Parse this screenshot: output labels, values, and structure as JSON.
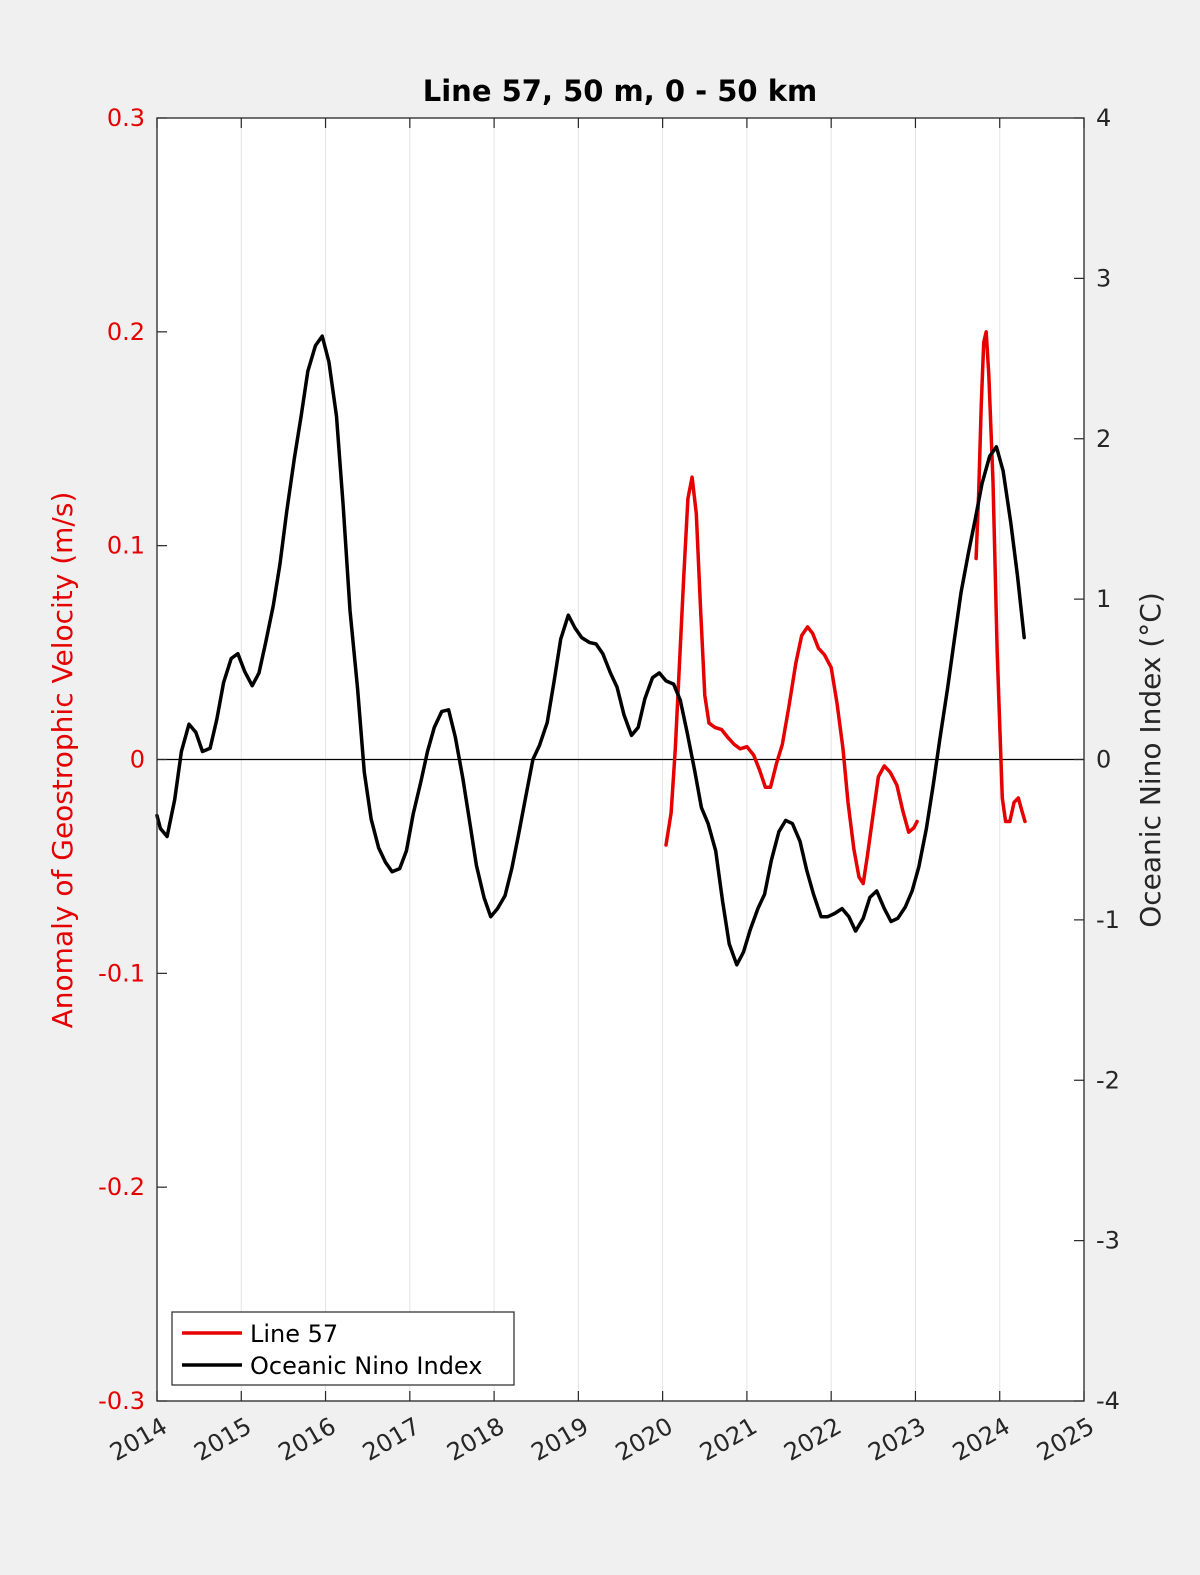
{
  "chart_data": {
    "type": "line",
    "title": "Line 57, 50 m, 0 - 50 km",
    "ylabel_left": "Anomaly of Geostrophic Velocity (m/s)",
    "ylabel_right": "Oceanic Nino Index (°C)",
    "xlim": [
      2014,
      2025
    ],
    "ylim_left": [
      -0.3,
      0.3
    ],
    "ylim_right": [
      -4,
      4
    ],
    "x_ticks": [
      "2014",
      "2015",
      "2016",
      "2017",
      "2018",
      "2019",
      "2020",
      "2021",
      "2022",
      "2023",
      "2024",
      "2025"
    ],
    "y_left_ticks": [
      "-0.3",
      "-0.2",
      "-0.1",
      "0",
      "0.1",
      "0.2",
      "0.3"
    ],
    "y_right_ticks": [
      "-4",
      "-3",
      "-2",
      "-1",
      "0",
      "1",
      "2",
      "3",
      "4"
    ],
    "grid": "vertical",
    "legend_position": "bottom-left",
    "colors": {
      "line57": "#e60000",
      "oni": "#000000",
      "left_axis": "#e60000"
    },
    "series": [
      {
        "name": "Line 57",
        "axis": "left",
        "color": "#e60000",
        "points": [
          [
            2020.04,
            -0.04
          ],
          [
            2020.1,
            -0.025
          ],
          [
            2020.15,
            0.005
          ],
          [
            2020.2,
            0.045
          ],
          [
            2020.25,
            0.085
          ],
          [
            2020.3,
            0.122
          ],
          [
            2020.35,
            0.132
          ],
          [
            2020.4,
            0.115
          ],
          [
            2020.45,
            0.07
          ],
          [
            2020.5,
            0.03
          ],
          [
            2020.55,
            0.017
          ],
          [
            2020.62,
            0.015
          ],
          [
            2020.7,
            0.014
          ],
          [
            2020.78,
            0.01
          ],
          [
            2020.85,
            0.007
          ],
          [
            2020.92,
            0.005
          ],
          [
            2021.0,
            0.006
          ],
          [
            2021.08,
            0.002
          ],
          [
            2021.15,
            -0.005
          ],
          [
            2021.22,
            -0.013
          ],
          [
            2021.28,
            -0.013
          ],
          [
            2021.35,
            -0.002
          ],
          [
            2021.42,
            0.007
          ],
          [
            2021.5,
            0.025
          ],
          [
            2021.58,
            0.045
          ],
          [
            2021.65,
            0.058
          ],
          [
            2021.72,
            0.062
          ],
          [
            2021.78,
            0.059
          ],
          [
            2021.85,
            0.052
          ],
          [
            2021.92,
            0.049
          ],
          [
            2022.0,
            0.043
          ],
          [
            2022.07,
            0.026
          ],
          [
            2022.14,
            0.005
          ],
          [
            2022.2,
            -0.02
          ],
          [
            2022.27,
            -0.042
          ],
          [
            2022.33,
            -0.055
          ],
          [
            2022.38,
            -0.058
          ],
          [
            2022.43,
            -0.045
          ],
          [
            2022.5,
            -0.025
          ],
          [
            2022.56,
            -0.008
          ],
          [
            2022.63,
            -0.003
          ],
          [
            2022.7,
            -0.006
          ],
          [
            2022.78,
            -0.012
          ],
          [
            2022.85,
            -0.024
          ],
          [
            2022.92,
            -0.034
          ],
          [
            2022.98,
            -0.032
          ],
          [
            2023.02,
            -0.029
          ]
        ]
      },
      {
        "name": "Line 57",
        "axis": "left",
        "color": "#e60000",
        "points": [
          [
            2023.72,
            0.094
          ],
          [
            2023.75,
            0.125
          ],
          [
            2023.78,
            0.165
          ],
          [
            2023.81,
            0.195
          ],
          [
            2023.84,
            0.2
          ],
          [
            2023.87,
            0.18
          ],
          [
            2023.92,
            0.13
          ],
          [
            2023.97,
            0.05
          ],
          [
            2024.03,
            -0.018
          ],
          [
            2024.07,
            -0.029
          ],
          [
            2024.12,
            -0.029
          ],
          [
            2024.17,
            -0.02
          ],
          [
            2024.22,
            -0.018
          ],
          [
            2024.27,
            -0.025
          ],
          [
            2024.3,
            -0.029
          ]
        ]
      },
      {
        "name": "Oceanic Nino Index",
        "axis": "right",
        "color": "#000000",
        "points": [
          [
            2014.0,
            -0.35
          ],
          [
            2014.04,
            -0.43
          ],
          [
            2014.12,
            -0.48
          ],
          [
            2014.21,
            -0.25
          ],
          [
            2014.29,
            0.05
          ],
          [
            2014.38,
            0.22
          ],
          [
            2014.46,
            0.17
          ],
          [
            2014.54,
            0.05
          ],
          [
            2014.63,
            0.07
          ],
          [
            2014.71,
            0.25
          ],
          [
            2014.79,
            0.48
          ],
          [
            2014.88,
            0.63
          ],
          [
            2014.96,
            0.66
          ],
          [
            2015.04,
            0.55
          ],
          [
            2015.13,
            0.46
          ],
          [
            2015.21,
            0.54
          ],
          [
            2015.29,
            0.73
          ],
          [
            2015.38,
            0.96
          ],
          [
            2015.46,
            1.22
          ],
          [
            2015.54,
            1.55
          ],
          [
            2015.63,
            1.88
          ],
          [
            2015.71,
            2.14
          ],
          [
            2015.79,
            2.42
          ],
          [
            2015.88,
            2.58
          ],
          [
            2015.96,
            2.64
          ],
          [
            2016.04,
            2.48
          ],
          [
            2016.13,
            2.14
          ],
          [
            2016.21,
            1.58
          ],
          [
            2016.29,
            0.93
          ],
          [
            2016.38,
            0.44
          ],
          [
            2016.46,
            -0.08
          ],
          [
            2016.54,
            -0.37
          ],
          [
            2016.63,
            -0.55
          ],
          [
            2016.71,
            -0.64
          ],
          [
            2016.79,
            -0.7
          ],
          [
            2016.88,
            -0.68
          ],
          [
            2016.96,
            -0.57
          ],
          [
            2017.04,
            -0.34
          ],
          [
            2017.13,
            -0.14
          ],
          [
            2017.21,
            0.05
          ],
          [
            2017.29,
            0.2
          ],
          [
            2017.38,
            0.3
          ],
          [
            2017.46,
            0.31
          ],
          [
            2017.54,
            0.14
          ],
          [
            2017.63,
            -0.12
          ],
          [
            2017.71,
            -0.39
          ],
          [
            2017.79,
            -0.66
          ],
          [
            2017.88,
            -0.86
          ],
          [
            2017.96,
            -0.98
          ],
          [
            2018.04,
            -0.93
          ],
          [
            2018.13,
            -0.85
          ],
          [
            2018.21,
            -0.68
          ],
          [
            2018.29,
            -0.47
          ],
          [
            2018.38,
            -0.22
          ],
          [
            2018.46,
            0.0
          ],
          [
            2018.54,
            0.09
          ],
          [
            2018.63,
            0.23
          ],
          [
            2018.71,
            0.48
          ],
          [
            2018.79,
            0.75
          ],
          [
            2018.88,
            0.9
          ],
          [
            2018.96,
            0.82
          ],
          [
            2019.04,
            0.76
          ],
          [
            2019.13,
            0.73
          ],
          [
            2019.21,
            0.72
          ],
          [
            2019.29,
            0.66
          ],
          [
            2019.38,
            0.54
          ],
          [
            2019.46,
            0.45
          ],
          [
            2019.54,
            0.28
          ],
          [
            2019.63,
            0.15
          ],
          [
            2019.71,
            0.2
          ],
          [
            2019.79,
            0.38
          ],
          [
            2019.88,
            0.51
          ],
          [
            2019.96,
            0.54
          ],
          [
            2020.04,
            0.49
          ],
          [
            2020.13,
            0.47
          ],
          [
            2020.21,
            0.37
          ],
          [
            2020.29,
            0.17
          ],
          [
            2020.38,
            -0.07
          ],
          [
            2020.46,
            -0.3
          ],
          [
            2020.54,
            -0.4
          ],
          [
            2020.63,
            -0.57
          ],
          [
            2020.71,
            -0.88
          ],
          [
            2020.79,
            -1.15
          ],
          [
            2020.88,
            -1.28
          ],
          [
            2020.96,
            -1.2
          ],
          [
            2021.04,
            -1.06
          ],
          [
            2021.13,
            -0.93
          ],
          [
            2021.21,
            -0.84
          ],
          [
            2021.29,
            -0.63
          ],
          [
            2021.38,
            -0.45
          ],
          [
            2021.46,
            -0.38
          ],
          [
            2021.54,
            -0.4
          ],
          [
            2021.63,
            -0.51
          ],
          [
            2021.71,
            -0.69
          ],
          [
            2021.79,
            -0.84
          ],
          [
            2021.88,
            -0.98
          ],
          [
            2021.96,
            -0.98
          ],
          [
            2022.04,
            -0.96
          ],
          [
            2022.13,
            -0.93
          ],
          [
            2022.21,
            -0.98
          ],
          [
            2022.29,
            -1.07
          ],
          [
            2022.38,
            -0.99
          ],
          [
            2022.46,
            -0.86
          ],
          [
            2022.54,
            -0.82
          ],
          [
            2022.63,
            -0.93
          ],
          [
            2022.71,
            -1.01
          ],
          [
            2022.79,
            -0.99
          ],
          [
            2022.88,
            -0.92
          ],
          [
            2022.96,
            -0.82
          ],
          [
            2023.04,
            -0.67
          ],
          [
            2023.13,
            -0.43
          ],
          [
            2023.21,
            -0.16
          ],
          [
            2023.29,
            0.13
          ],
          [
            2023.38,
            0.44
          ],
          [
            2023.46,
            0.74
          ],
          [
            2023.54,
            1.04
          ],
          [
            2023.63,
            1.29
          ],
          [
            2023.71,
            1.5
          ],
          [
            2023.79,
            1.72
          ],
          [
            2023.88,
            1.89
          ],
          [
            2023.96,
            1.95
          ],
          [
            2024.04,
            1.8
          ],
          [
            2024.13,
            1.48
          ],
          [
            2024.21,
            1.15
          ],
          [
            2024.29,
            0.76
          ]
        ]
      }
    ]
  },
  "legend": {
    "items": [
      {
        "label": "Line 57",
        "color": "#e60000"
      },
      {
        "label": "Oceanic Nino Index",
        "color": "#000000"
      }
    ]
  }
}
